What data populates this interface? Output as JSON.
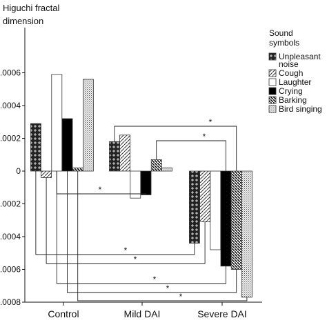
{
  "chart_data": {
    "type": "bar",
    "ylabel": "Higuchi fractal dimension",
    "categories": [
      "Control",
      "Mild DAI",
      "Severe DAI"
    ],
    "ylim": [
      -0.0008,
      0.0008
    ],
    "yticks": [
      {
        "value": 0.0006,
        "label": ".0006"
      },
      {
        "value": 0.0004,
        "label": ".0004"
      },
      {
        "value": 0.0002,
        "label": ".0002"
      },
      {
        "value": 0,
        "label": "0"
      },
      {
        "value": -0.0002,
        "label": ".0002"
      },
      {
        "value": -0.0004,
        "label": ".0004"
      },
      {
        "value": -0.0006,
        "label": ".0006"
      },
      {
        "value": -0.0008,
        "label": ".0008"
      }
    ],
    "legend_title": "Sound symbols",
    "legend_position": "right",
    "series": [
      {
        "name": "Unpleasant noise",
        "pattern": "dark-crosses",
        "values": [
          0.00029,
          0.00018,
          -0.00044
        ]
      },
      {
        "name": "Cough",
        "pattern": "diagonal-light",
        "values": [
          -4e-05,
          0.00022,
          -0.00031
        ]
      },
      {
        "name": "Laughter",
        "pattern": "white",
        "values": [
          0.00059,
          -0.000165,
          -0.00048
        ]
      },
      {
        "name": "Crying",
        "pattern": "black",
        "values": [
          0.00032,
          -0.000145,
          -0.00058
        ]
      },
      {
        "name": "Barking",
        "pattern": "diagonal-dense",
        "values": [
          2e-05,
          7e-05,
          -0.0006
        ]
      },
      {
        "name": "Bird singing",
        "pattern": "dots",
        "values": [
          0.00056,
          2e-05,
          -0.00077
        ]
      }
    ],
    "significance_marker": "*",
    "grid": false
  }
}
